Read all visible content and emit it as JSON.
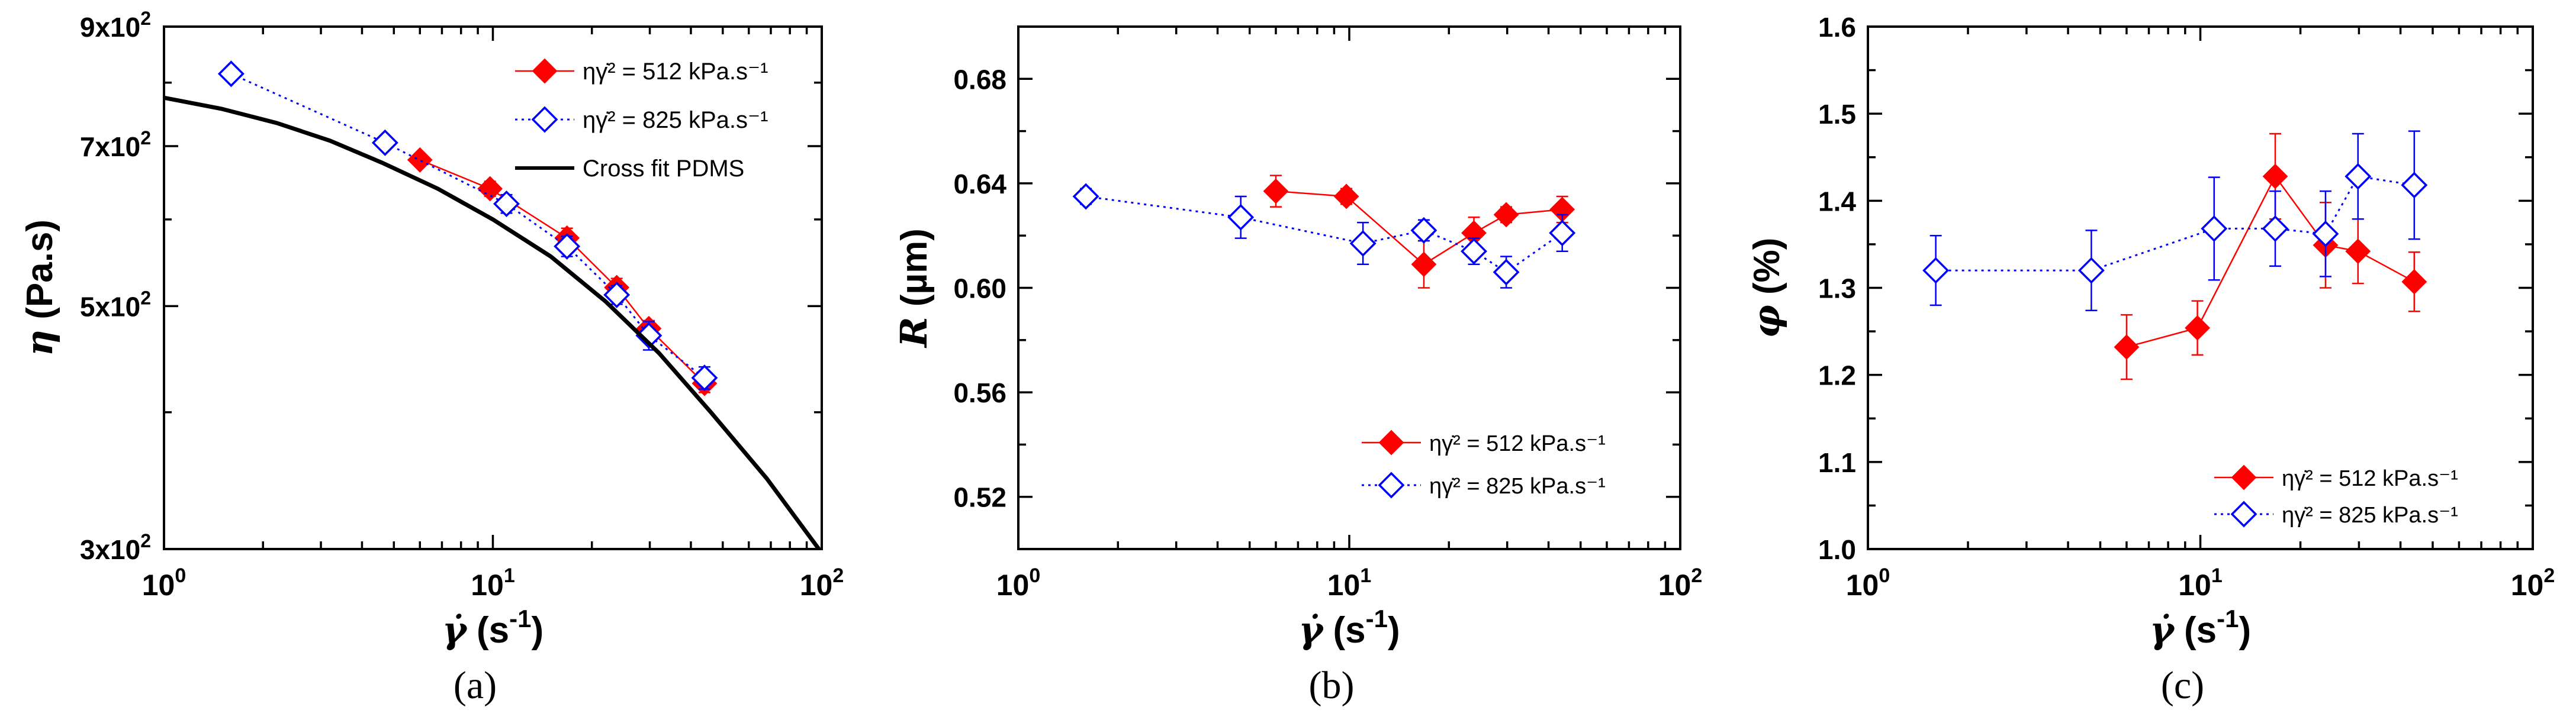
{
  "colors": {
    "series_512": "#ff0000",
    "series_825": "#0000ff",
    "fit": "#000000"
  },
  "chart_data": [
    {
      "panel": "(a)",
      "type": "scatter",
      "xscale": "log",
      "yscale": "log",
      "xlim": [
        1,
        100
      ],
      "ylim": [
        300,
        900
      ],
      "xlabel": "γ̇ (s⁻¹)",
      "ylabel": "η (Pa.s)",
      "x_tick_labels": [
        {
          "value": 1,
          "base": "10",
          "exp": "0"
        },
        {
          "value": 10,
          "base": "10",
          "exp": "1"
        },
        {
          "value": 100,
          "base": "10",
          "exp": "2"
        }
      ],
      "y_tick_labels": [
        {
          "value": 300,
          "base": "3x10",
          "exp": "2"
        },
        {
          "value": 500,
          "base": "5x10",
          "exp": "2"
        },
        {
          "value": 700,
          "base": "7x10",
          "exp": "2"
        },
        {
          "value": 900,
          "base": "9x10",
          "exp": "2"
        }
      ],
      "legend_position": "top-right",
      "series": [
        {
          "name": "ηγ̇² = 512 kPa.s⁻¹",
          "marker": "filled-diamond",
          "line": "solid",
          "x": [
            6,
            9.8,
            16.8,
            23.8,
            29.8,
            44
          ],
          "y": [
            680,
            640,
            577,
            520,
            477,
            425
          ],
          "err": [
            8,
            10,
            12,
            10,
            8,
            8
          ]
        },
        {
          "name": "ηγ̇² = 825 kPa.s⁻¹",
          "marker": "open-diamond",
          "line": "dotted",
          "x": [
            1.6,
            4.7,
            11,
            16.8,
            23.8,
            29.8,
            44
          ],
          "y": [
            815,
            705,
            620,
            567,
            512,
            470,
            430
          ],
          "err": [
            0,
            10,
            12,
            12,
            10,
            14,
            10
          ]
        },
        {
          "name": "Cross fit PDMS",
          "marker": "none",
          "line": "solid-thick",
          "x": [
            1,
            1.5,
            2.2,
            3.2,
            4.6,
            6.8,
            10,
            15,
            22,
            32,
            46,
            68,
            98
          ],
          "y": [
            775,
            757,
            735,
            708,
            676,
            640,
            600,
            555,
            505,
            453,
            400,
            348,
            300
          ]
        }
      ]
    },
    {
      "panel": "(b)",
      "type": "scatter",
      "xscale": "log",
      "xlim": [
        1,
        100
      ],
      "ylim": [
        0.5,
        0.7
      ],
      "xlabel": "γ̇ (s⁻¹)",
      "ylabel": "R (µm)",
      "x_tick_labels": [
        {
          "value": 1,
          "base": "10",
          "exp": "0"
        },
        {
          "value": 10,
          "base": "10",
          "exp": "1"
        },
        {
          "value": 100,
          "base": "10",
          "exp": "2"
        }
      ],
      "y_ticks": [
        0.52,
        0.56,
        0.6,
        0.64,
        0.68
      ],
      "y_tick_labels": [
        "0.52",
        "0.56",
        "0.60",
        "0.64",
        "0.68"
      ],
      "legend_position": "bottom-right",
      "series": [
        {
          "name": "ηγ̇² = 512 kPa.s⁻¹",
          "marker": "filled-diamond",
          "line": "solid",
          "x": [
            6,
            9.8,
            16.8,
            23.8,
            29.8,
            44
          ],
          "y": [
            0.637,
            0.635,
            0.609,
            0.621,
            0.628,
            0.63
          ],
          "err": [
            0.006,
            0.003,
            0.009,
            0.006,
            0.003,
            0.005
          ]
        },
        {
          "name": "ηγ̇² = 825 kPa.s⁻¹",
          "marker": "open-diamond",
          "line": "dotted",
          "x": [
            1.6,
            4.7,
            11,
            16.8,
            23.8,
            29.8,
            44
          ],
          "y": [
            0.635,
            0.627,
            0.617,
            0.622,
            0.614,
            0.606,
            0.621
          ],
          "err": [
            0.003,
            0.008,
            0.008,
            0.004,
            0.005,
            0.006,
            0.007
          ]
        }
      ]
    },
    {
      "panel": "(c)",
      "type": "scatter",
      "xscale": "log",
      "xlim": [
        1,
        100
      ],
      "ylim": [
        1.0,
        1.6
      ],
      "xlabel": "γ̇ (s⁻¹)",
      "ylabel": "φ (%)",
      "x_tick_labels": [
        {
          "value": 1,
          "base": "10",
          "exp": "0"
        },
        {
          "value": 10,
          "base": "10",
          "exp": "1"
        },
        {
          "value": 100,
          "base": "10",
          "exp": "2"
        }
      ],
      "y_ticks": [
        1.0,
        1.1,
        1.2,
        1.3,
        1.4,
        1.5,
        1.6
      ],
      "y_tick_labels": [
        "1.0",
        "1.1",
        "1.2",
        "1.3",
        "1.4",
        "1.5",
        "1.6"
      ],
      "legend_position": "bottom-right",
      "series": [
        {
          "name": "ηγ̇² = 512 kPa.s⁻¹",
          "marker": "filled-diamond",
          "line": "solid",
          "x": [
            6,
            9.8,
            16.8,
            23.8,
            29.8,
            44
          ],
          "y": [
            1.232,
            1.254,
            1.428,
            1.349,
            1.342,
            1.307
          ],
          "err": [
            0.037,
            0.031,
            0.049,
            0.049,
            0.037,
            0.034
          ]
        },
        {
          "name": "ηγ̇² = 825 kPa.s⁻¹",
          "marker": "open-diamond",
          "line": "dotted",
          "x": [
            1.6,
            4.7,
            11,
            16.8,
            23.8,
            29.8,
            44
          ],
          "y": [
            1.32,
            1.32,
            1.368,
            1.368,
            1.362,
            1.428,
            1.418
          ],
          "err": [
            0.04,
            0.046,
            0.059,
            0.043,
            0.049,
            0.049,
            0.062
          ]
        }
      ]
    }
  ]
}
